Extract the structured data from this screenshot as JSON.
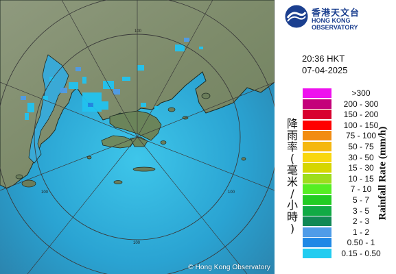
{
  "map": {
    "copyright": "© Hong Kong Observatory",
    "range_labels": [
      "100",
      "100",
      "100",
      "100"
    ]
  },
  "panel": {
    "logo": {
      "icon": "hko-logo-icon",
      "chinese": "香港天文台",
      "english": "HONG KONG OBSERVATORY"
    },
    "time": "20:36 HKT",
    "date": "07-04-2025",
    "legend_title_cn": [
      "降",
      "雨",
      "率",
      "(",
      "毫",
      "米",
      "/",
      "小",
      "時",
      ")"
    ],
    "legend_title_en": "Rainfall Rate (mm/h)",
    "legend": [
      {
        "label": ">300",
        "color": "#ee11ee"
      },
      {
        "label": "200 - 300",
        "color": "#c4007a"
      },
      {
        "label": "150 - 200",
        "color": "#d8002f"
      },
      {
        "label": "100 - 150",
        "color": "#ff0000"
      },
      {
        "label": "75 - 100",
        "color": "#f28c11"
      },
      {
        "label": "50 - 75",
        "color": "#f5b70f"
      },
      {
        "label": "30 - 50",
        "color": "#f9d70e"
      },
      {
        "label": "15 - 30",
        "color": "#d6d600"
      },
      {
        "label": "10 - 15",
        "color": "#9ddd1c"
      },
      {
        "label": "7 - 10",
        "color": "#55ee22"
      },
      {
        "label": "5 - 7",
        "color": "#22cc22"
      },
      {
        "label": "3 - 5",
        "color": "#11aa44"
      },
      {
        "label": "2 - 3",
        "color": "#118855"
      },
      {
        "label": "1 - 2",
        "color": "#4f9ce8"
      },
      {
        "label": "0.50 - 1",
        "color": "#1f88e6"
      },
      {
        "label": "0.15 - 0.50",
        "color": "#22ccf0"
      }
    ]
  }
}
